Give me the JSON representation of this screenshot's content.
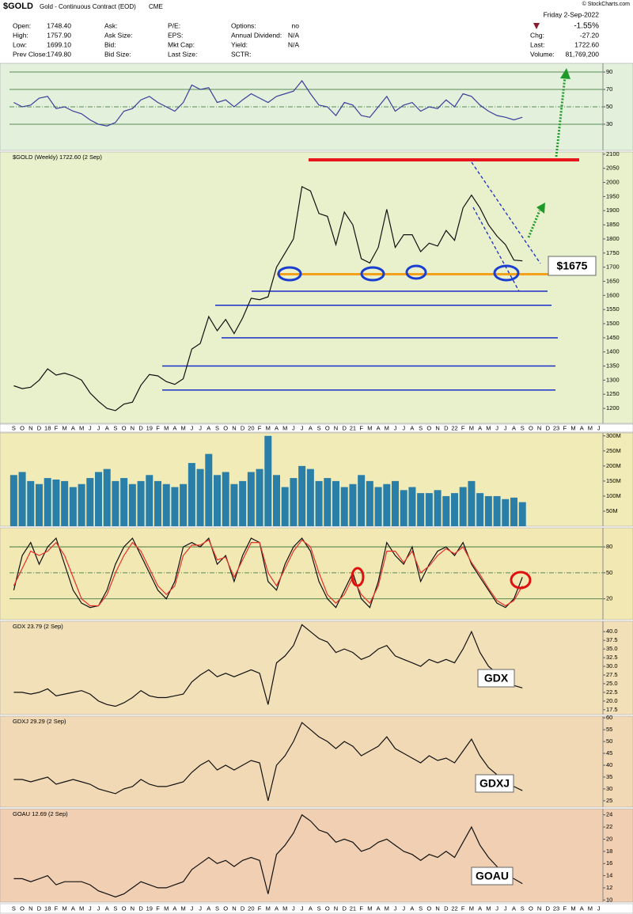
{
  "header": {
    "symbol": "$GOLD",
    "name": "Gold - Continuous Contract (EOD)",
    "exchange": "CME",
    "source": "© StockCharts.com",
    "date": "Friday  2-Sep-2022",
    "change_pct": "-1.55%",
    "fields": [
      [
        {
          "label": "Open:",
          "value": "1748.40"
        },
        {
          "label": "Ask:"
        },
        {
          "label": "P/E:"
        },
        {
          "label": "Options:",
          "value": "no"
        }
      ],
      [
        {
          "label": "High:",
          "value": "1757.90"
        },
        {
          "label": "Ask Size:"
        },
        {
          "label": "EPS:"
        },
        {
          "label": "Annual Dividend:",
          "value": "N/A"
        },
        {
          "label": "Chg:",
          "value": "-27.20"
        }
      ],
      [
        {
          "label": "Low:",
          "value": "1699.10"
        },
        {
          "label": "Bid:"
        },
        {
          "label": "Mkt Cap:"
        },
        {
          "label": "Yield:",
          "value": "N/A"
        },
        {
          "label": "Last:",
          "value": "1722.60"
        }
      ],
      [
        {
          "label": "Prev Close:",
          "value": "1749.80"
        },
        {
          "label": "Bid Size:"
        },
        {
          "label": "Last Size:"
        },
        {
          "label": "SCTR:"
        },
        {
          "label": "Volume:",
          "value": "81,769,200"
        }
      ]
    ]
  },
  "chart_data": [
    {
      "type": "line",
      "color": "#3a3f9a",
      "ylim": [
        0,
        100
      ],
      "yticks": [
        30,
        50,
        70,
        90
      ],
      "grid": true,
      "values": [
        55,
        50,
        52,
        60,
        62,
        48,
        50,
        45,
        42,
        35,
        30,
        28,
        32,
        45,
        48,
        58,
        62,
        55,
        50,
        45,
        55,
        75,
        70,
        72,
        55,
        58,
        50,
        58,
        65,
        60,
        55,
        62,
        65,
        68,
        80,
        65,
        52,
        50,
        40,
        55,
        52,
        40,
        38,
        50,
        62,
        45,
        52,
        55,
        45,
        50,
        48,
        58,
        50,
        65,
        62,
        52,
        45,
        40,
        38,
        35,
        38,
        null,
        null,
        null,
        null,
        null,
        null,
        null,
        null,
        null
      ]
    },
    {
      "type": "line",
      "title": "$GOLD (Weekly) 1722.60 (2 Sep)",
      "color": "#111111",
      "ylim": [
        1147,
        2108
      ],
      "yticks": [
        1200,
        1250,
        1300,
        1350,
        1400,
        1450,
        1500,
        1550,
        1600,
        1650,
        1700,
        1750,
        1800,
        1850,
        1900,
        1950,
        2000,
        2050,
        2100
      ],
      "grid": false,
      "categories": [
        "S",
        "O",
        "N",
        "D",
        "18",
        "F",
        "M",
        "A",
        "M",
        "J",
        "J",
        "A",
        "S",
        "O",
        "N",
        "D",
        "19",
        "F",
        "M",
        "A",
        "M",
        "J",
        "J",
        "A",
        "S",
        "O",
        "N",
        "D",
        "20",
        "F",
        "M",
        "A",
        "M",
        "J",
        "J",
        "A",
        "S",
        "O",
        "N",
        "D",
        "21",
        "F",
        "M",
        "A",
        "M",
        "J",
        "J",
        "A",
        "S",
        "O",
        "N",
        "D",
        "22",
        "F",
        "M",
        "A",
        "M",
        "J",
        "J",
        "A",
        "S",
        "O",
        "N",
        "D",
        "23",
        "F",
        "M",
        "A",
        "M",
        "J"
      ],
      "values": [
        1280,
        1270,
        1275,
        1300,
        1340,
        1318,
        1325,
        1315,
        1300,
        1255,
        1225,
        1200,
        1192,
        1215,
        1222,
        1282,
        1320,
        1315,
        1295,
        1285,
        1305,
        1410,
        1430,
        1525,
        1475,
        1515,
        1465,
        1520,
        1590,
        1585,
        1595,
        1700,
        1750,
        1800,
        1985,
        1970,
        1890,
        1880,
        1780,
        1895,
        1850,
        1730,
        1715,
        1770,
        1905,
        1770,
        1815,
        1815,
        1755,
        1785,
        1775,
        1830,
        1795,
        1910,
        1955,
        1910,
        1850,
        1810,
        1780,
        1725,
        1722.6,
        null,
        null,
        null,
        null,
        null,
        null,
        null,
        null,
        null
      ],
      "levels": [
        {
          "value": 2080,
          "color": "#e8151b"
        },
        {
          "value": 1675,
          "color": "#f5a01a"
        },
        {
          "value": 1615,
          "color": "#1a2fc8"
        },
        {
          "value": 1565,
          "color": "#1a2fc8"
        },
        {
          "value": 1450,
          "color": "#1a2fc8"
        },
        {
          "value": 1350,
          "color": "#1a2fc8"
        },
        {
          "value": 1265,
          "color": "#1a2fc8"
        }
      ],
      "annotation": "$1675"
    },
    {
      "type": "bar",
      "color": "#2a7fa8",
      "ylim": [
        0,
        310000000
      ],
      "grid": false,
      "yticks": [
        {
          "value": 50000000,
          "label": "50M"
        },
        {
          "value": 100000000,
          "label": "100M"
        },
        {
          "value": 150000000,
          "label": "150M"
        },
        {
          "value": 200000000,
          "label": "200M"
        },
        {
          "value": 250000000,
          "label": "250M"
        },
        {
          "value": 300000000,
          "label": "300M"
        }
      ],
      "values": [
        170000000,
        180000000,
        150000000,
        140000000,
        160000000,
        155000000,
        150000000,
        130000000,
        140000000,
        160000000,
        180000000,
        190000000,
        150000000,
        160000000,
        140000000,
        150000000,
        170000000,
        150000000,
        140000000,
        130000000,
        140000000,
        210000000,
        190000000,
        240000000,
        170000000,
        180000000,
        140000000,
        150000000,
        180000000,
        190000000,
        300000000,
        170000000,
        130000000,
        160000000,
        200000000,
        190000000,
        150000000,
        160000000,
        150000000,
        130000000,
        140000000,
        170000000,
        150000000,
        130000000,
        140000000,
        150000000,
        120000000,
        130000000,
        110000000,
        110000000,
        120000000,
        100000000,
        110000000,
        130000000,
        150000000,
        110000000,
        100000000,
        100000000,
        90000000,
        95000000,
        80000000,
        null,
        null,
        null,
        null,
        null,
        null,
        null,
        null,
        null
      ]
    },
    {
      "type": "line",
      "ylim": [
        -4,
        102
      ],
      "yticks": [
        20,
        50,
        80
      ],
      "grid": true,
      "series": [
        {
          "color": "#111111",
          "values": [
            30,
            70,
            85,
            60,
            80,
            90,
            60,
            30,
            15,
            10,
            12,
            30,
            60,
            80,
            90,
            70,
            50,
            30,
            20,
            40,
            80,
            85,
            80,
            90,
            60,
            70,
            40,
            70,
            90,
            85,
            40,
            30,
            60,
            80,
            90,
            75,
            40,
            20,
            10,
            30,
            50,
            20,
            10,
            40,
            85,
            70,
            60,
            80,
            40,
            60,
            75,
            80,
            70,
            85,
            60,
            45,
            30,
            15,
            10,
            20,
            45,
            null,
            null,
            null,
            null,
            null,
            null,
            null,
            null,
            null
          ]
        },
        {
          "color": "#e8302a",
          "values": [
            35,
            55,
            75,
            70,
            75,
            85,
            70,
            45,
            20,
            12,
            12,
            25,
            50,
            70,
            85,
            75,
            55,
            35,
            25,
            35,
            70,
            82,
            82,
            88,
            65,
            68,
            45,
            65,
            85,
            85,
            50,
            35,
            55,
            75,
            88,
            80,
            50,
            25,
            15,
            25,
            45,
            25,
            15,
            35,
            75,
            75,
            62,
            75,
            50,
            58,
            70,
            78,
            72,
            80,
            62,
            48,
            32,
            18,
            12,
            18,
            35,
            null,
            null,
            null,
            null,
            null,
            null,
            null,
            null,
            null
          ]
        }
      ]
    },
    {
      "type": "line",
      "title": "GDX 23.79 (2 Sep)",
      "annotation": "GDX",
      "color": "#111111",
      "ylim": [
        16.1,
        43
      ],
      "grid": false,
      "yticks": [
        17.5,
        {
          "value": 20,
          "label": "20.0"
        },
        22.5,
        {
          "value": 25,
          "label": "25.0"
        },
        27.5,
        {
          "value": 30,
          "label": "30.0"
        },
        32.5,
        {
          "value": 35,
          "label": "35.0"
        },
        37.5,
        {
          "value": 40,
          "label": "40.0"
        }
      ],
      "values": [
        22.5,
        22.5,
        22,
        22.5,
        23.5,
        21.5,
        22,
        22.5,
        23,
        22,
        20,
        19,
        18.5,
        19.5,
        21,
        23,
        21.5,
        21,
        21,
        21.5,
        22,
        25.5,
        27.5,
        29,
        27,
        28,
        27,
        28,
        29,
        28,
        19,
        31,
        33,
        36,
        42,
        40,
        38,
        37,
        34,
        35,
        34,
        32,
        33,
        35,
        36,
        33,
        32,
        31,
        30,
        32,
        31,
        32,
        31,
        35,
        40,
        34,
        30,
        28,
        26,
        24.5,
        23.79,
        null,
        null,
        null,
        null,
        null,
        null,
        null,
        null,
        null
      ]
    },
    {
      "type": "line",
      "title": "GDXJ 29.29 (2 Sep)",
      "annotation": "GDXJ",
      "color": "#111111",
      "ylim": [
        22.3,
        60.7
      ],
      "grid": false,
      "yticks": [
        25,
        30,
        35,
        40,
        45,
        50,
        55,
        60
      ],
      "values": [
        34,
        34,
        33,
        34,
        35,
        32,
        33,
        34,
        33,
        32,
        30,
        29,
        28,
        30,
        31,
        34,
        32,
        31,
        31,
        32,
        33,
        37,
        40,
        42,
        38,
        40,
        38,
        40,
        42,
        41,
        25,
        40,
        44,
        50,
        58,
        55,
        52,
        50,
        47,
        50,
        48,
        44,
        46,
        48,
        52,
        47,
        45,
        43,
        41,
        44,
        42,
        43,
        41,
        46,
        51,
        44,
        39,
        36,
        33,
        31,
        29.29,
        null,
        null,
        null,
        null,
        null,
        null,
        null,
        null,
        null
      ]
    },
    {
      "type": "line",
      "title": "GOAU 12.69 (2 Sep)",
      "annotation": "GOAU",
      "color": "#111111",
      "ylim": [
        9.65,
        25
      ],
      "grid": false,
      "yticks": [
        10,
        12,
        14,
        16,
        18,
        20,
        22,
        24
      ],
      "values": [
        13.5,
        13.5,
        13,
        13.5,
        14,
        12.5,
        13,
        13,
        13,
        12.5,
        11.5,
        11,
        10.5,
        11,
        12,
        13,
        12.5,
        12,
        12,
        12.5,
        13,
        15,
        16,
        17,
        16,
        16.5,
        15.5,
        16.5,
        17,
        16.5,
        11,
        17.5,
        19,
        21,
        24,
        23,
        21.5,
        21,
        19.5,
        20,
        19.5,
        18,
        18.5,
        19.5,
        20,
        19,
        18,
        17.5,
        16.5,
        17.5,
        17,
        18,
        17,
        19.5,
        22,
        19,
        17,
        15.5,
        14,
        13.5,
        12.69,
        null,
        null,
        null,
        null,
        null,
        null,
        null,
        null,
        null
      ]
    }
  ]
}
